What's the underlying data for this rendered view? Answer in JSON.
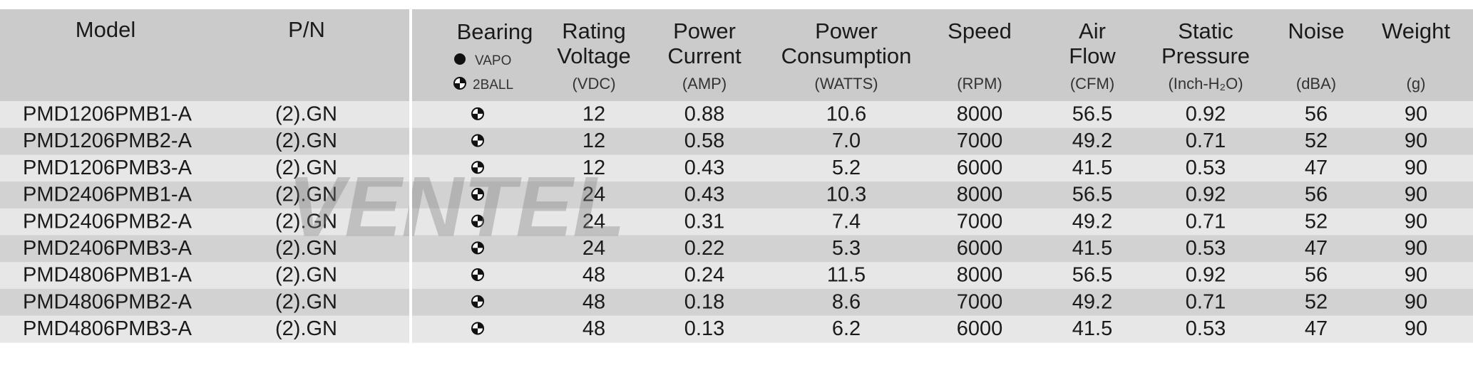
{
  "header": {
    "model": "Model",
    "pn": "P/N",
    "bearing": "Bearing",
    "bearing_legend": [
      "VAPO",
      "2BALL"
    ],
    "columns": [
      {
        "lines": [
          "Rating",
          "Voltage"
        ],
        "unit": "(VDC)"
      },
      {
        "lines": [
          "Power",
          "Current"
        ],
        "unit": "(AMP)"
      },
      {
        "lines": [
          "Power",
          "Consumption"
        ],
        "unit": "(WATTS)"
      },
      {
        "lines": [
          "Speed"
        ],
        "unit": "(RPM)"
      },
      {
        "lines": [
          "Air",
          "Flow"
        ],
        "unit": "(CFM)"
      },
      {
        "lines": [
          "Static",
          "Pressure"
        ],
        "unit": "(Inch-H₂O)"
      },
      {
        "lines": [
          "Noise"
        ],
        "unit": "(dBA)"
      },
      {
        "lines": [
          "Weight"
        ],
        "unit": "(g)"
      }
    ]
  },
  "watermark": "VENTEL",
  "table": {
    "rows": [
      [
        "PMD1206PMB1-A",
        "(2).GN",
        "12",
        "0.88",
        "10.6",
        "8000",
        "56.5",
        "0.92",
        "56",
        "90"
      ],
      [
        "PMD1206PMB2-A",
        "(2).GN",
        "12",
        "0.58",
        "7.0",
        "7000",
        "49.2",
        "0.71",
        "52",
        "90"
      ],
      [
        "PMD1206PMB3-A",
        "(2).GN",
        "12",
        "0.43",
        "5.2",
        "6000",
        "41.5",
        "0.53",
        "47",
        "90"
      ],
      [
        "PMD2406PMB1-A",
        "(2).GN",
        "24",
        "0.43",
        "10.3",
        "8000",
        "56.5",
        "0.92",
        "56",
        "90"
      ],
      [
        "PMD2406PMB2-A",
        "(2).GN",
        "24",
        "0.31",
        "7.4",
        "7000",
        "49.2",
        "0.71",
        "52",
        "90"
      ],
      [
        "PMD2406PMB3-A",
        "(2).GN",
        "24",
        "0.22",
        "5.3",
        "6000",
        "41.5",
        "0.53",
        "47",
        "90"
      ],
      [
        "PMD4806PMB1-A",
        "(2).GN",
        "48",
        "0.24",
        "11.5",
        "8000",
        "56.5",
        "0.92",
        "56",
        "90"
      ],
      [
        "PMD4806PMB2-A",
        "(2).GN",
        "48",
        "0.18",
        "8.6",
        "7000",
        "49.2",
        "0.71",
        "52",
        "90"
      ],
      [
        "PMD4806PMB3-A",
        "(2).GN",
        "48",
        "0.13",
        "6.2",
        "6000",
        "41.5",
        "0.53",
        "47",
        "90"
      ]
    ]
  }
}
